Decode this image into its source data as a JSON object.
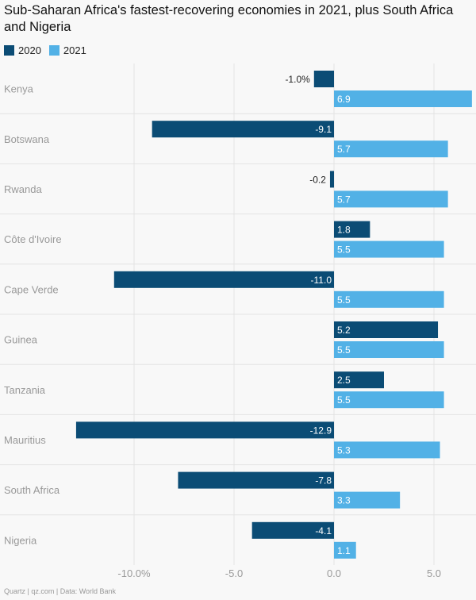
{
  "chart_data": {
    "type": "bar",
    "orientation": "horizontal",
    "title": "Sub-Saharan Africa's fastest-recovering economies in 2021, plus South Africa and Nigeria",
    "categories": [
      "Kenya",
      "Botswana",
      "Rwanda",
      "Côte d'Ivoire",
      "Cape Verde",
      "Guinea",
      "Tanzania",
      "Mauritius",
      "South Africa",
      "Nigeria"
    ],
    "series": [
      {
        "name": "2020",
        "color": "#0b4c75",
        "values": [
          -1.0,
          -9.1,
          -0.2,
          1.8,
          -11.0,
          5.2,
          2.5,
          -12.9,
          -7.8,
          -4.1
        ],
        "labels": [
          "-1.0%",
          "-9.1",
          "-0.2",
          "1.8",
          "-11.0",
          "5.2",
          "2.5",
          "-12.9",
          "-7.8",
          "-4.1"
        ]
      },
      {
        "name": "2021",
        "color": "#52b1e6",
        "values": [
          6.9,
          5.7,
          5.7,
          5.5,
          5.5,
          5.5,
          5.5,
          5.3,
          3.3,
          1.1
        ],
        "labels": [
          "6.9",
          "5.7",
          "5.7",
          "5.5",
          "5.5",
          "5.5",
          "5.5",
          "5.3",
          "3.3",
          "1.1"
        ]
      }
    ],
    "xlim": [
      -13.0,
      7.0
    ],
    "x_ticks": [
      -10,
      -5,
      0,
      5
    ],
    "x_tick_labels": [
      "-10.0%",
      "-5.0",
      "0.0",
      "5.0"
    ],
    "grid": true,
    "legend_position": "top-left"
  },
  "footer": "Quartz | qz.com | Data: World Bank"
}
